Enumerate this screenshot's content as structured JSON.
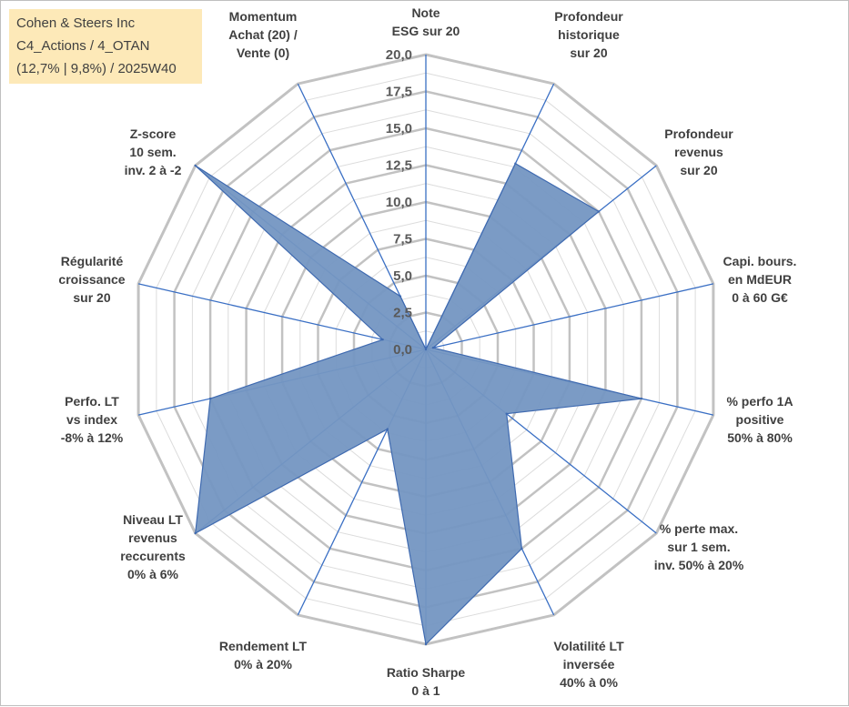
{
  "info_box": {
    "line1": "Cohen & Steers Inc",
    "line2": "C4_Actions / 4_OTAN",
    "line3": "(12,7% | 9,8%) / 2025W40"
  },
  "colors": {
    "fill": "#7496c2",
    "stroke": "#3f6ab0",
    "axis": "#3a6fc4",
    "grid_major": "#c2c2c2",
    "grid_minor": "#dcdcdc",
    "text": "#404040"
  },
  "chart_data": {
    "type": "radar",
    "title": "",
    "range": [
      0,
      20
    ],
    "major_step": 2.5,
    "tick_labels": [
      "0,0",
      "2,5",
      "5,0",
      "7,5",
      "10,0",
      "12,5",
      "15,0",
      "17,5",
      "20,0"
    ],
    "axes": [
      {
        "label": [
          "Note",
          "ESG sur 20"
        ],
        "value": 0
      },
      {
        "label": [
          "Profondeur",
          "historique",
          "sur 20"
        ],
        "value": 14
      },
      {
        "label": [
          "Profondeur",
          "revenus",
          "sur 20"
        ],
        "value": 15
      },
      {
        "label": [
          "Capi. bours.",
          "en MdEUR",
          "0 à 60 G€"
        ],
        "value": 0.5
      },
      {
        "label": [
          "% perfo 1A",
          "positive",
          "50% à 80%"
        ],
        "value": 15
      },
      {
        "label": [
          "% perte max.",
          "sur 1 sem.",
          "inv. 50% à 20%"
        ],
        "value": 7
      },
      {
        "label": [
          "Volatilité LT",
          "inversée",
          "40% à 0%"
        ],
        "value": 15
      },
      {
        "label": [
          "Ratio Sharpe",
          "0 à 1"
        ],
        "value": 20
      },
      {
        "label": [
          "Rendement LT",
          "0% à 20%"
        ],
        "value": 6
      },
      {
        "label": [
          "Niveau LT",
          "revenus",
          "reccurents",
          "0% à 6%"
        ],
        "value": 20
      },
      {
        "label": [
          "Perfo. LT",
          "vs index",
          "-8% à 12%"
        ],
        "value": 15
      },
      {
        "label": [
          "Régularité",
          "croissance",
          "sur 20"
        ],
        "value": 3
      },
      {
        "label": [
          "Z-score",
          "10 sem.",
          "inv. 2 à -2"
        ],
        "value": 20
      },
      {
        "label": [
          "Momentum",
          "Achat (20) /",
          "Vente (0)"
        ],
        "value": 4
      }
    ]
  }
}
